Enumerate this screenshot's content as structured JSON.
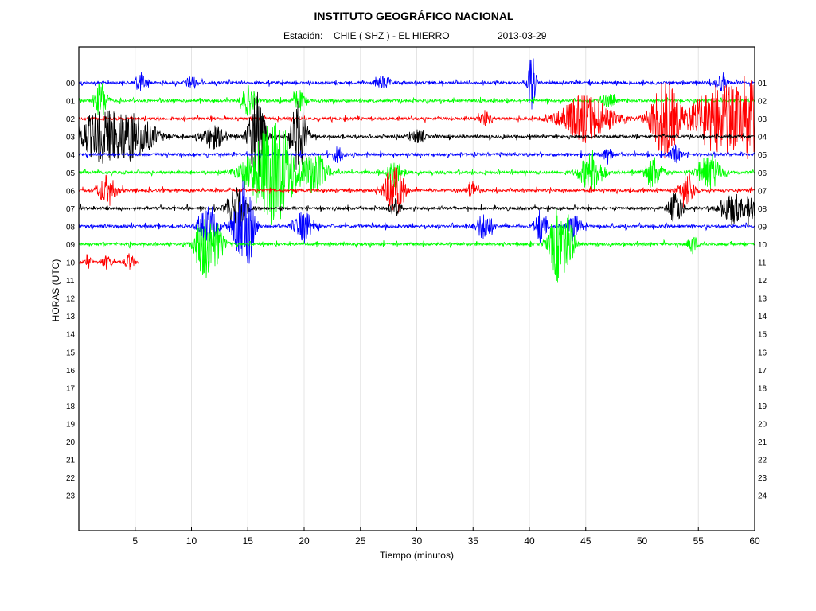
{
  "header": {
    "title": "INSTITUTO GEOGRÁFICO NACIONAL",
    "station_label": "Estación:",
    "station_value": "CHIE ( SHZ ) - EL HIERRO",
    "date": "2013-03-29"
  },
  "chart_data": {
    "type": "line",
    "title": "INSTITUTO GEOGRÁFICO NACIONAL",
    "xlabel": "Tiempo (minutos)",
    "ylabel": "HORAS (UTC)",
    "xlim": [
      0,
      60
    ],
    "xticks": [
      5,
      10,
      15,
      20,
      25,
      30,
      35,
      40,
      45,
      50,
      55,
      60
    ],
    "grid": "vertical",
    "left_hour_labels": [
      "00",
      "01",
      "02",
      "03",
      "04",
      "05",
      "06",
      "07",
      "08",
      "09",
      "10",
      "11",
      "12",
      "13",
      "14",
      "15",
      "16",
      "17",
      "18",
      "19",
      "20",
      "21",
      "22",
      "23"
    ],
    "right_hour_labels": [
      "01",
      "02",
      "03",
      "04",
      "05",
      "06",
      "07",
      "08",
      "09",
      "10",
      "11",
      "12",
      "13",
      "14",
      "15",
      "16",
      "17",
      "18",
      "19",
      "20",
      "21",
      "22",
      "23",
      "24"
    ],
    "colors": [
      "#0000ff",
      "#00ff00",
      "#ff0000",
      "#000000"
    ],
    "series": [
      {
        "hour": 0,
        "color": "#0000ff",
        "end_min": 60,
        "bursts": [
          [
            40.2,
            40,
            0.3
          ],
          [
            5.5,
            12,
            0.5
          ],
          [
            10,
            8,
            0.5
          ],
          [
            27,
            8,
            0.6
          ],
          [
            57,
            10,
            0.5
          ]
        ]
      },
      {
        "hour": 1,
        "color": "#00ff00",
        "end_min": 60,
        "bursts": [
          [
            2,
            25,
            0.5
          ],
          [
            15,
            18,
            0.6
          ],
          [
            19.5,
            14,
            0.5
          ],
          [
            47,
            8,
            0.6
          ]
        ]
      },
      {
        "hour": 2,
        "color": "#ff0000",
        "end_min": 60,
        "bursts": [
          [
            45,
            30,
            2.2
          ],
          [
            52,
            50,
            1.2
          ],
          [
            57,
            45,
            2.5
          ],
          [
            59.5,
            40,
            0.8
          ],
          [
            36,
            10,
            0.5
          ]
        ]
      },
      {
        "hour": 3,
        "color": "#000000",
        "end_min": 60,
        "bursts": [
          [
            2,
            30,
            2.2
          ],
          [
            5,
            25,
            1.8
          ],
          [
            15.8,
            55,
            0.7
          ],
          [
            19.5,
            45,
            0.7
          ],
          [
            12,
            15,
            1
          ],
          [
            30,
            8,
            0.6
          ]
        ]
      },
      {
        "hour": 4,
        "color": "#0000ff",
        "end_min": 60,
        "bursts": [
          [
            23,
            10,
            0.5
          ],
          [
            47,
            8,
            0.5
          ],
          [
            53,
            10,
            0.5
          ]
        ]
      },
      {
        "hour": 5,
        "color": "#00ff00",
        "end_min": 60,
        "bursts": [
          [
            16.5,
            40,
            1.8
          ],
          [
            18,
            38,
            1.5
          ],
          [
            21,
            25,
            1
          ],
          [
            28,
            20,
            0.6
          ],
          [
            45.5,
            25,
            1
          ],
          [
            51,
            20,
            0.8
          ],
          [
            56,
            22,
            1
          ]
        ]
      },
      {
        "hour": 6,
        "color": "#ff0000",
        "end_min": 60,
        "bursts": [
          [
            2.5,
            18,
            0.8
          ],
          [
            28,
            35,
            0.8
          ],
          [
            35,
            12,
            0.5
          ],
          [
            54,
            25,
            0.6
          ]
        ]
      },
      {
        "hour": 7,
        "color": "#000000",
        "end_min": 60,
        "bursts": [
          [
            14,
            25,
            0.8
          ],
          [
            28,
            12,
            0.5
          ],
          [
            53,
            20,
            0.6
          ],
          [
            58,
            20,
            1
          ],
          [
            59.6,
            18,
            0.4
          ]
        ]
      },
      {
        "hour": 8,
        "color": "#0000ff",
        "end_min": 60,
        "bursts": [
          [
            11.5,
            25,
            0.8
          ],
          [
            14.5,
            40,
            0.8
          ],
          [
            15,
            30,
            0.6
          ],
          [
            20,
            20,
            0.8
          ],
          [
            36,
            18,
            0.7
          ],
          [
            41,
            22,
            0.5
          ],
          [
            44,
            15,
            0.6
          ]
        ]
      },
      {
        "hour": 9,
        "color": "#00ff00",
        "end_min": 60,
        "bursts": [
          [
            11,
            35,
            0.7
          ],
          [
            12,
            28,
            0.8
          ],
          [
            42.5,
            45,
            0.7
          ],
          [
            43.5,
            30,
            0.5
          ],
          [
            54.5,
            12,
            0.4
          ]
        ]
      },
      {
        "hour": 10,
        "color": "#ff0000",
        "end_min": 5.3,
        "bursts": [
          [
            0.8,
            8,
            0.3
          ],
          [
            2.5,
            8,
            0.4
          ],
          [
            4.5,
            10,
            0.4
          ]
        ]
      }
    ]
  }
}
